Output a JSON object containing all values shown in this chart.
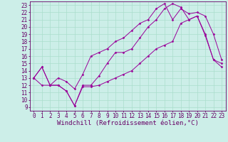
{
  "title": "",
  "xlabel": "Windchill (Refroidissement éolien,°C)",
  "ylabel": "",
  "xlim": [
    -0.5,
    23.5
  ],
  "ylim": [
    8.5,
    23.5
  ],
  "xticks": [
    0,
    1,
    2,
    3,
    4,
    5,
    6,
    7,
    8,
    9,
    10,
    11,
    12,
    13,
    14,
    15,
    16,
    17,
    18,
    19,
    20,
    21,
    22,
    23
  ],
  "yticks": [
    9,
    10,
    11,
    12,
    13,
    14,
    15,
    16,
    17,
    18,
    19,
    20,
    21,
    22,
    23
  ],
  "background_color": "#cceee8",
  "grid_color": "#aaddcc",
  "line_color": "#990099",
  "line1_x": [
    0,
    1,
    2,
    3,
    4,
    5,
    6,
    7,
    8,
    9,
    10,
    11,
    12,
    13,
    14,
    15,
    16,
    17,
    18,
    19,
    20,
    21,
    22,
    23
  ],
  "line1_y": [
    13.0,
    14.5,
    12.0,
    12.0,
    11.2,
    9.2,
    12.0,
    12.0,
    13.3,
    15.0,
    16.5,
    16.5,
    17.0,
    18.5,
    20.0,
    21.0,
    22.5,
    23.2,
    22.7,
    21.0,
    21.5,
    18.8,
    15.5,
    15.0
  ],
  "line2_x": [
    0,
    1,
    2,
    3,
    4,
    5,
    6,
    7,
    8,
    9,
    10,
    11,
    12,
    13,
    14,
    15,
    16,
    17,
    18,
    19,
    20,
    21,
    22,
    23
  ],
  "line2_y": [
    13.0,
    12.0,
    12.0,
    12.0,
    11.2,
    9.2,
    11.8,
    11.8,
    12.0,
    12.5,
    13.0,
    13.5,
    14.0,
    15.0,
    16.0,
    17.0,
    17.5,
    18.0,
    20.5,
    21.0,
    21.5,
    19.0,
    15.5,
    14.5
  ],
  "line3_x": [
    0,
    1,
    2,
    3,
    4,
    5,
    6,
    7,
    8,
    9,
    10,
    11,
    12,
    13,
    14,
    15,
    16,
    17,
    18,
    19,
    20,
    21,
    22,
    23
  ],
  "line3_y": [
    13.0,
    14.5,
    12.0,
    13.0,
    12.5,
    11.5,
    13.5,
    16.0,
    16.5,
    17.0,
    18.0,
    18.5,
    19.5,
    20.5,
    21.0,
    22.5,
    23.2,
    21.0,
    22.5,
    21.8,
    22.0,
    21.5,
    19.0,
    15.5
  ],
  "tick_fontsize": 5.5,
  "xlabel_fontsize": 6.5
}
